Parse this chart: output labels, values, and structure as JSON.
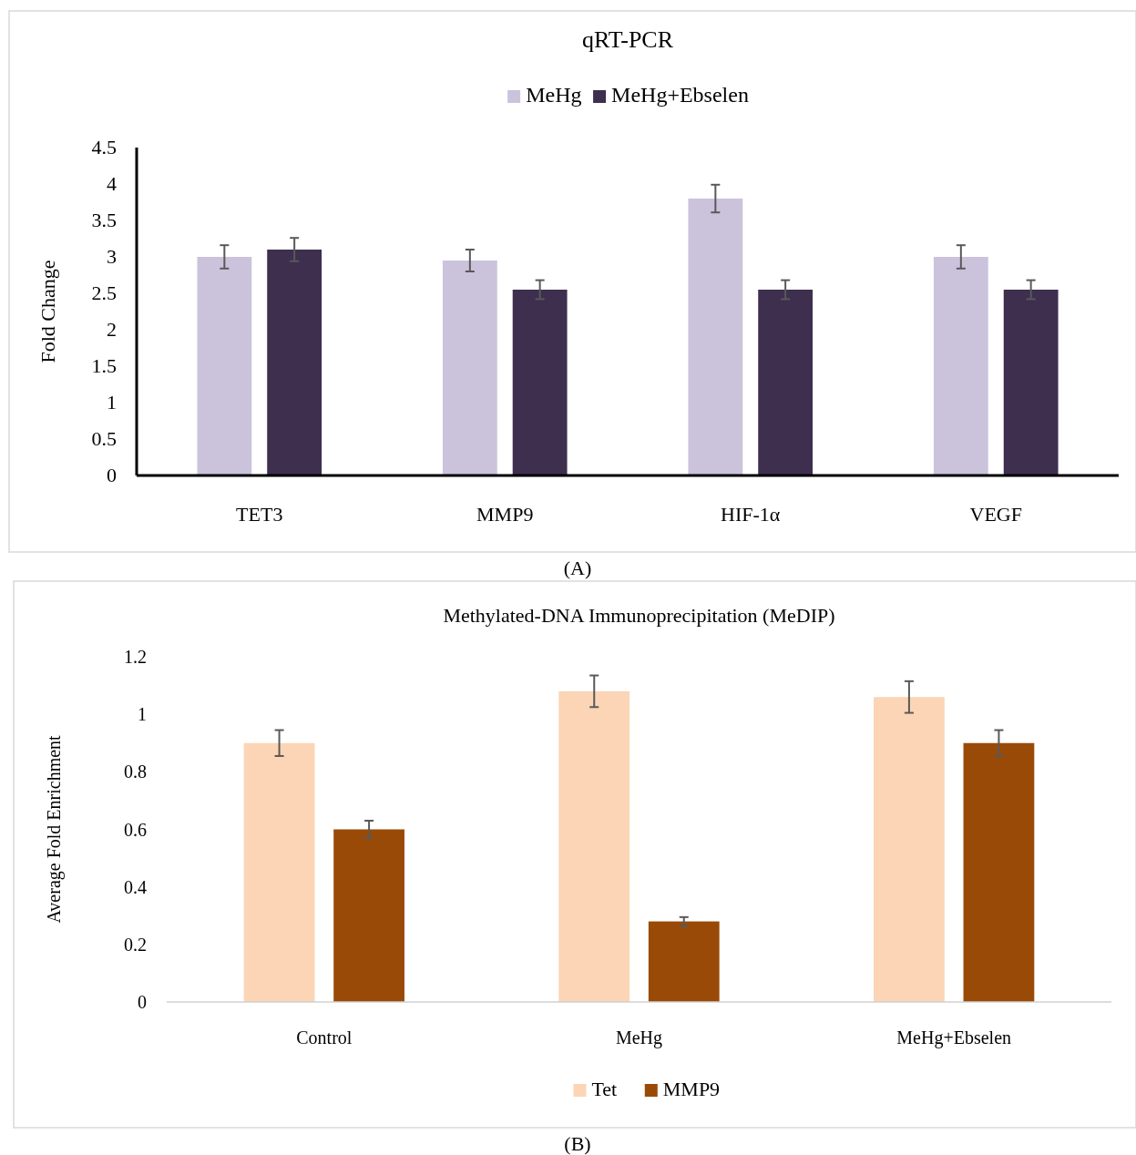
{
  "chart_data": [
    {
      "type": "bar",
      "title": "qRT-PCR",
      "ylabel": "Fold Change",
      "categories": [
        "TET3",
        "MMP9",
        "HIF-1α",
        "VEGF"
      ],
      "series": [
        {
          "name": "MeHg",
          "color": "#cbc3dc",
          "values": [
            3.0,
            2.95,
            3.8,
            3.0
          ],
          "errors": [
            0.16,
            0.15,
            0.19,
            0.16
          ]
        },
        {
          "name": "MeHg+Ebselen",
          "color": "#3e2f4f",
          "values": [
            3.1,
            2.55,
            2.55,
            2.55
          ],
          "errors": [
            0.16,
            0.13,
            0.13,
            0.13
          ]
        }
      ],
      "ylim": [
        0,
        4.5
      ],
      "yticks": [
        0,
        0.5,
        1,
        1.5,
        2,
        2.5,
        3,
        3.5,
        4,
        4.5
      ],
      "legend": "top",
      "annotations": [
        "(A)"
      ]
    },
    {
      "type": "bar",
      "title": "Methylated-DNA Immunoprecipitation (MeDIP)",
      "ylabel": "Average Fold Enrichment",
      "categories": [
        "Control",
        "MeHg",
        "MeHg+Ebselen"
      ],
      "series": [
        {
          "name": "Tet",
          "color": "#fbd5b5",
          "values": [
            0.9,
            1.08,
            1.06
          ],
          "errors": [
            0.045,
            0.055,
            0.055
          ]
        },
        {
          "name": "MMP9",
          "color": "#9a4a07",
          "values": [
            0.6,
            0.28,
            0.9
          ],
          "errors": [
            0.03,
            0.015,
            0.045
          ]
        }
      ],
      "ylim": [
        0,
        1.2
      ],
      "yticks": [
        0,
        0.2,
        0.4,
        0.6,
        0.8,
        1,
        1.2
      ],
      "legend": "bottom",
      "annotations": [
        "(B)"
      ]
    }
  ]
}
